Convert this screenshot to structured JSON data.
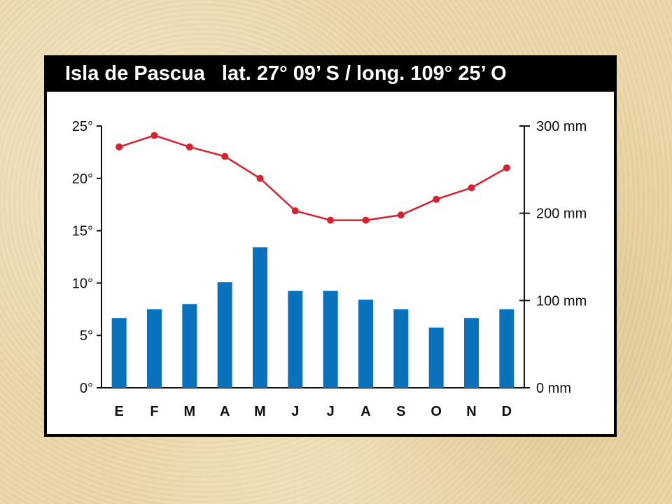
{
  "chart_data": {
    "type": "bar+line",
    "title": "Isla de Pascua",
    "subtitle": "lat. 27° 09’ S / long. 109° 25’ O",
    "categories": [
      "E",
      "F",
      "M",
      "A",
      "M",
      "J",
      "J",
      "A",
      "S",
      "O",
      "N",
      "D"
    ],
    "series": [
      {
        "kind": "bar",
        "axis": "right",
        "values": [
          80,
          90,
          96,
          121,
          161,
          111,
          111,
          101,
          90,
          69,
          80,
          90
        ],
        "color": "#0a72bd"
      },
      {
        "kind": "line",
        "axis": "left",
        "values": [
          23,
          24.1,
          23,
          22.1,
          20,
          16.9,
          16,
          16,
          16.5,
          18,
          19.1,
          21
        ],
        "color": "#d8202f"
      }
    ],
    "y_left": {
      "range": [
        0,
        25
      ],
      "ticks": [
        "0°",
        "5°",
        "10°",
        "15°",
        "20°",
        "25°"
      ],
      "tick_values": [
        0,
        5,
        10,
        15,
        20,
        25
      ]
    },
    "y_right": {
      "range": [
        0,
        300
      ],
      "ticks": [
        "0 mm",
        "100 mm",
        "200 mm",
        "300 mm"
      ],
      "tick_values": [
        0,
        100,
        200,
        300
      ]
    },
    "grid": false
  }
}
